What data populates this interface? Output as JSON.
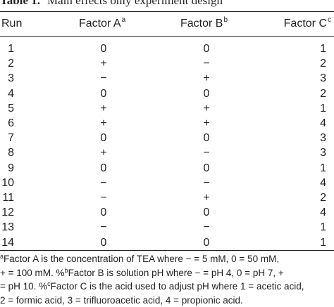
{
  "table": {
    "label": "Table 1.",
    "title": "Main effects only experiment design",
    "columns": {
      "run": "Run",
      "factor_a": "Factor A",
      "factor_a_note": "a",
      "factor_b": "Factor B",
      "factor_b_note": "b",
      "factor_c": "Factor C",
      "factor_c_note": "c"
    },
    "rows": [
      {
        "run": "1",
        "a": "0",
        "b": "0",
        "c": "1"
      },
      {
        "run": "2",
        "a": "+",
        "b": "−",
        "c": "2"
      },
      {
        "run": "3",
        "a": "−",
        "b": "+",
        "c": "3"
      },
      {
        "run": "4",
        "a": "0",
        "b": "0",
        "c": "2"
      },
      {
        "run": "5",
        "a": "+",
        "b": "+",
        "c": "1"
      },
      {
        "run": "6",
        "a": "+",
        "b": "+",
        "c": "4"
      },
      {
        "run": "7",
        "a": "0",
        "b": "0",
        "c": "3"
      },
      {
        "run": "8",
        "a": "+",
        "b": "−",
        "c": "3"
      },
      {
        "run": "9",
        "a": "0",
        "b": "0",
        "c": "1"
      },
      {
        "run": "10",
        "a": "−",
        "b": "−",
        "c": "4"
      },
      {
        "run": "11",
        "a": "−",
        "b": "+",
        "c": "2"
      },
      {
        "run": "12",
        "a": "0",
        "b": "0",
        "c": "4"
      },
      {
        "run": "13",
        "a": "−",
        "b": "−",
        "c": "1"
      },
      {
        "run": "14",
        "a": "0",
        "b": "0",
        "c": "1"
      }
    ]
  },
  "footnotes": {
    "line1_mark": "a",
    "line1": "Factor A is the concentration of TEA where − = 5 mM, 0 = 50 mM,",
    "line2_start": "+ = 100 mM. %",
    "line2_mark": "b",
    "line2_end": "Factor B is solution pH where − = pH 4, 0 = pH 7, +",
    "line3_start": "= pH 10. %",
    "line3_mark": "c",
    "line3_end": "Factor C is the acid used to adjust pH where 1 = acetic acid,",
    "line4": "2 = formic acid, 3 = trifluoroacetic acid, 4 = propionic acid."
  }
}
